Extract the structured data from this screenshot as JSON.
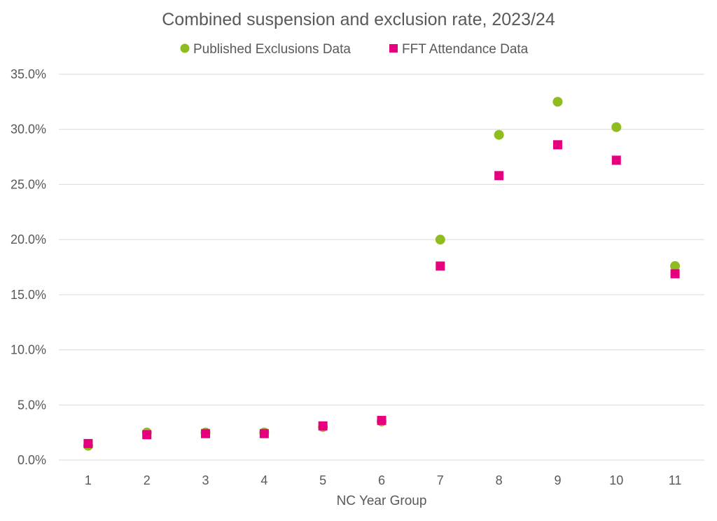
{
  "chart_data": {
    "type": "scatter",
    "title": "Combined suspension and exclusion rate, 2023/24",
    "xlabel": "NC Year Group",
    "ylabel": "",
    "categories": [
      "1",
      "2",
      "3",
      "4",
      "5",
      "6",
      "7",
      "8",
      "9",
      "10",
      "11"
    ],
    "ylim": [
      0,
      35
    ],
    "yticks": [
      0,
      5,
      10,
      15,
      20,
      25,
      30,
      35
    ],
    "ytick_labels": [
      "0.0%",
      "5.0%",
      "10.0%",
      "15.0%",
      "20.0%",
      "25.0%",
      "30.0%",
      "35.0%"
    ],
    "grid": true,
    "legend_position": "top",
    "series": [
      {
        "name": "Published Exclusions Data",
        "marker": "circle",
        "color": "#8fbc1e",
        "values": [
          1.3,
          2.5,
          2.5,
          2.5,
          3.0,
          3.5,
          20.0,
          29.5,
          32.5,
          30.2,
          17.6
        ]
      },
      {
        "name": "FFT Attendance Data",
        "marker": "square",
        "color": "#e6007e",
        "values": [
          1.5,
          2.3,
          2.4,
          2.4,
          3.1,
          3.6,
          17.6,
          25.8,
          28.6,
          27.2,
          16.9
        ]
      }
    ]
  }
}
